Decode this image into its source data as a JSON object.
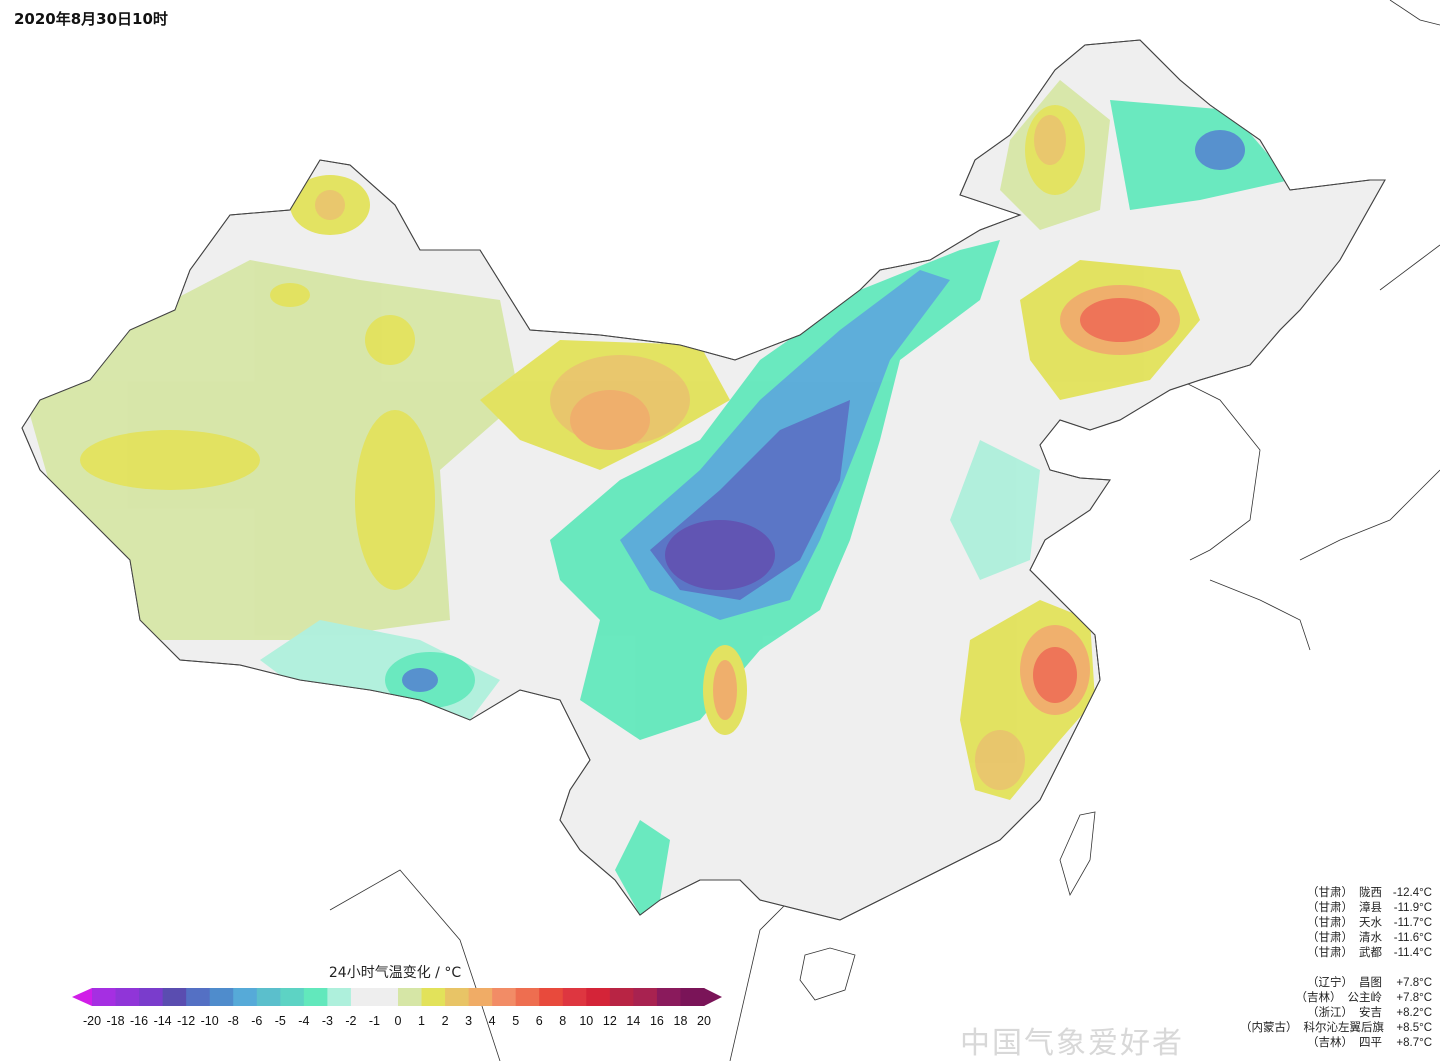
{
  "title": "2020年8月30日10时",
  "legend": {
    "title": "24小时气温变化 / °C",
    "ticks": [
      "-20",
      "-18",
      "-16",
      "-14",
      "-12",
      "-10",
      "-8",
      "-6",
      "-5",
      "-4",
      "-3",
      "-2",
      "-1",
      "0",
      "1",
      "2",
      "3",
      "4",
      "5",
      "6",
      "8",
      "10",
      "12",
      "14",
      "16",
      "18",
      "20"
    ],
    "colors": [
      "#d11ee8",
      "#a52fe2",
      "#9035d8",
      "#7a3ccc",
      "#5a4db0",
      "#5470c4",
      "#4f8ccc",
      "#56aad8",
      "#5bbfcc",
      "#5dd3c4",
      "#62e8bc",
      "#aef0dc",
      "#eeeeee",
      "#eeeeee",
      "#d6e6a6",
      "#e2e25a",
      "#e8c466",
      "#f0ac66",
      "#f28c66",
      "#ee6e50",
      "#e84a3c",
      "#de3640",
      "#d42438",
      "#b82444",
      "#a82250",
      "#8a1a5c",
      "#7a1458"
    ]
  },
  "stations": {
    "coolest": [
      {
        "province": "（甘肃）",
        "name": "陇西",
        "value": "-12.4°C"
      },
      {
        "province": "（甘肃）",
        "name": "漳县",
        "value": "-11.9°C"
      },
      {
        "province": "（甘肃）",
        "name": "天水",
        "value": "-11.7°C"
      },
      {
        "province": "（甘肃）",
        "name": "清水",
        "value": "-11.6°C"
      },
      {
        "province": "（甘肃）",
        "name": "武都",
        "value": "-11.4°C"
      }
    ],
    "warmest": [
      {
        "province": "（辽宁）",
        "name": "昌图",
        "value": "+7.8°C"
      },
      {
        "province": "（吉林）",
        "name": "公主岭",
        "value": "+7.8°C"
      },
      {
        "province": "（浙江）",
        "name": "安吉",
        "value": "+8.2°C"
      },
      {
        "province": "（内蒙古）",
        "name": "科尔沁左翼后旗",
        "value": "+8.5°C"
      },
      {
        "province": "（吉林）",
        "name": "四平",
        "value": "+8.7°C"
      }
    ]
  },
  "watermark": "中国气象爱好者"
}
